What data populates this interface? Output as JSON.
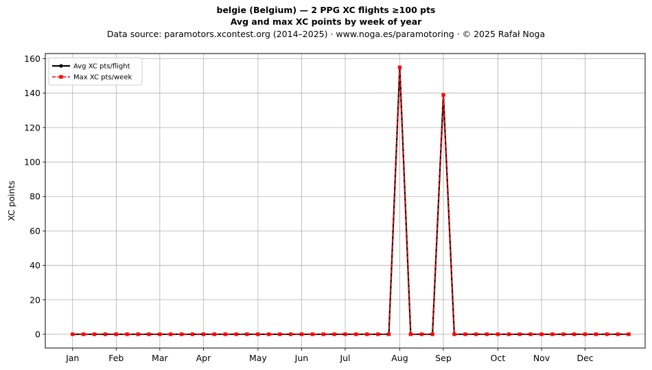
{
  "chart_data": {
    "type": "line",
    "title": "belgie (Belgium)  —  2 PPG XC flights ≥100 pts",
    "subtitle": "Avg and max XC points by week of year",
    "source_note": "Data source: paramotors.xcontest.org (2014–2025)  ·  www.noga.es/paramotoring  ·  © 2025 Rafał Noga",
    "xlabel": "",
    "ylabel": "XC points",
    "xlim": [
      -1.5,
      53.5
    ],
    "ylim": [
      -8,
      163
    ],
    "yticks": [
      0,
      20,
      40,
      60,
      80,
      100,
      120,
      140,
      160
    ],
    "xticks": [
      {
        "week": 1,
        "label": "Jan"
      },
      {
        "week": 5,
        "label": "Feb"
      },
      {
        "week": 9,
        "label": "Mar"
      },
      {
        "week": 13,
        "label": "Apr"
      },
      {
        "week": 18,
        "label": "May"
      },
      {
        "week": 22,
        "label": "Jun"
      },
      {
        "week": 26,
        "label": "Jul"
      },
      {
        "week": 31,
        "label": "Aug"
      },
      {
        "week": 35,
        "label": "Sep"
      },
      {
        "week": 40,
        "label": "Oct"
      },
      {
        "week": 44,
        "label": "Nov"
      },
      {
        "week": 48,
        "label": "Dec"
      }
    ],
    "grid": true,
    "legend_position": "top-left",
    "x": [
      1,
      2,
      3,
      4,
      5,
      6,
      7,
      8,
      9,
      10,
      11,
      12,
      13,
      14,
      15,
      16,
      17,
      18,
      19,
      20,
      21,
      22,
      23,
      24,
      25,
      26,
      27,
      28,
      29,
      30,
      31,
      32,
      33,
      34,
      35,
      36,
      37,
      38,
      39,
      40,
      41,
      42,
      43,
      44,
      45,
      46,
      47,
      48,
      49,
      50,
      51,
      52
    ],
    "series": [
      {
        "name": "Avg XC pts/flight",
        "color": "#000000",
        "style": "solid",
        "marker": "circle",
        "values": [
          0,
          0,
          0,
          0,
          0,
          0,
          0,
          0,
          0,
          0,
          0,
          0,
          0,
          0,
          0,
          0,
          0,
          0,
          0,
          0,
          0,
          0,
          0,
          0,
          0,
          0,
          0,
          0,
          0,
          0,
          155,
          0,
          0,
          0,
          139,
          0,
          0,
          0,
          0,
          0,
          0,
          0,
          0,
          0,
          0,
          0,
          0,
          0,
          0,
          0,
          0,
          0
        ]
      },
      {
        "name": "Max XC pts/week",
        "color": "#ff0000",
        "style": "dashed",
        "marker": "square",
        "values": [
          0,
          0,
          0,
          0,
          0,
          0,
          0,
          0,
          0,
          0,
          0,
          0,
          0,
          0,
          0,
          0,
          0,
          0,
          0,
          0,
          0,
          0,
          0,
          0,
          0,
          0,
          0,
          0,
          0,
          0,
          155,
          0,
          0,
          0,
          139,
          0,
          0,
          0,
          0,
          0,
          0,
          0,
          0,
          0,
          0,
          0,
          0,
          0,
          0,
          0,
          0,
          0
        ]
      }
    ]
  }
}
